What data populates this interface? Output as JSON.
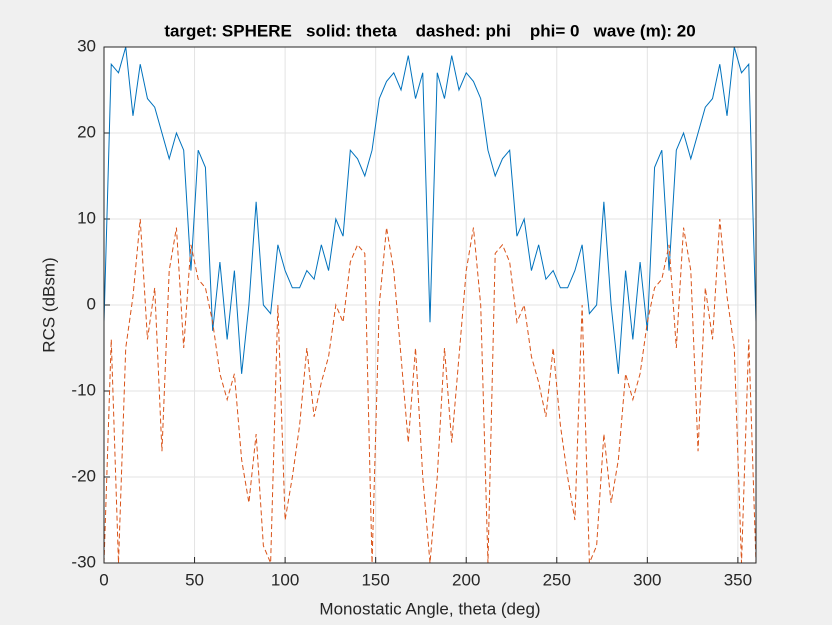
{
  "chart_data": {
    "type": "line",
    "title": "target: SPHERE   solid: theta    dashed: phi    phi= 0   wave (m): 20",
    "xlabel": "Monostatic Angle, theta (deg)",
    "ylabel": "RCS (dBsm)",
    "x": [
      0,
      4,
      8,
      12,
      16,
      20,
      24,
      28,
      32,
      36,
      40,
      44,
      48,
      52,
      56,
      60,
      64,
      68,
      72,
      76,
      80,
      84,
      88,
      92,
      96,
      100,
      104,
      108,
      112,
      116,
      120,
      124,
      128,
      132,
      136,
      140,
      144,
      148,
      152,
      156,
      160,
      164,
      168,
      172,
      176,
      180,
      184,
      188,
      192,
      196,
      200,
      204,
      208,
      212,
      216,
      220,
      224,
      228,
      232,
      236,
      240,
      244,
      248,
      252,
      256,
      260,
      264,
      268,
      272,
      276,
      280,
      284,
      288,
      292,
      296,
      300,
      304,
      308,
      312,
      316,
      320,
      324,
      328,
      332,
      336,
      340,
      344,
      348,
      352,
      356,
      360
    ],
    "series": [
      {
        "color": "#0072bd",
        "line_style": "solid",
        "values": [
          -2,
          28,
          27,
          30,
          22,
          28,
          24,
          23,
          20,
          17,
          20,
          18,
          4,
          18,
          16,
          -3,
          5,
          -4,
          4,
          -8,
          0,
          12,
          0,
          -1,
          7,
          4,
          2,
          2,
          4,
          3,
          7,
          4,
          10,
          8,
          18,
          17,
          15,
          18,
          24,
          26,
          27,
          25,
          29,
          24,
          27,
          -2,
          27,
          24,
          29,
          25,
          27,
          26,
          24,
          18,
          15,
          17,
          18,
          8,
          10,
          4,
          7,
          3,
          4,
          2,
          2,
          4,
          7,
          -1,
          0,
          12,
          0,
          -8,
          4,
          -4,
          5,
          -3,
          16,
          18,
          4,
          18,
          20,
          17,
          20,
          23,
          24,
          28,
          22,
          30,
          27,
          28,
          -2
        ]
      },
      {
        "color": "#d95319",
        "line_style": "dashed",
        "values": [
          -30,
          -4,
          -30,
          -5,
          1,
          10,
          -4,
          2,
          -17,
          4,
          9,
          -5,
          7,
          3,
          2,
          -2,
          -8,
          -11,
          -8,
          -18,
          -23,
          -15,
          -28,
          -30,
          0,
          -25,
          -20,
          -14,
          -5,
          -13,
          -9,
          -6,
          0,
          -2,
          5,
          7,
          6,
          -30,
          0,
          9,
          4,
          -6,
          -16,
          -5,
          -20,
          -30,
          -20,
          -5,
          -16,
          -6,
          4,
          9,
          0,
          -30,
          6,
          7,
          5,
          -2,
          0,
          -6,
          -9,
          -13,
          -5,
          -14,
          -20,
          -25,
          0,
          -30,
          -28,
          -15,
          -23,
          -18,
          -8,
          -11,
          -8,
          -2,
          2,
          3,
          7,
          -5,
          9,
          4,
          -17,
          2,
          -4,
          10,
          1,
          -5,
          -30,
          -4,
          -30
        ]
      }
    ],
    "xlim": [
      0,
      360
    ],
    "xticks": [
      0,
      50,
      100,
      150,
      200,
      250,
      300,
      350
    ],
    "ylim": [
      -30,
      30
    ],
    "yticks": [
      -30,
      -20,
      -10,
      0,
      10,
      20,
      30
    ],
    "grid": true
  }
}
